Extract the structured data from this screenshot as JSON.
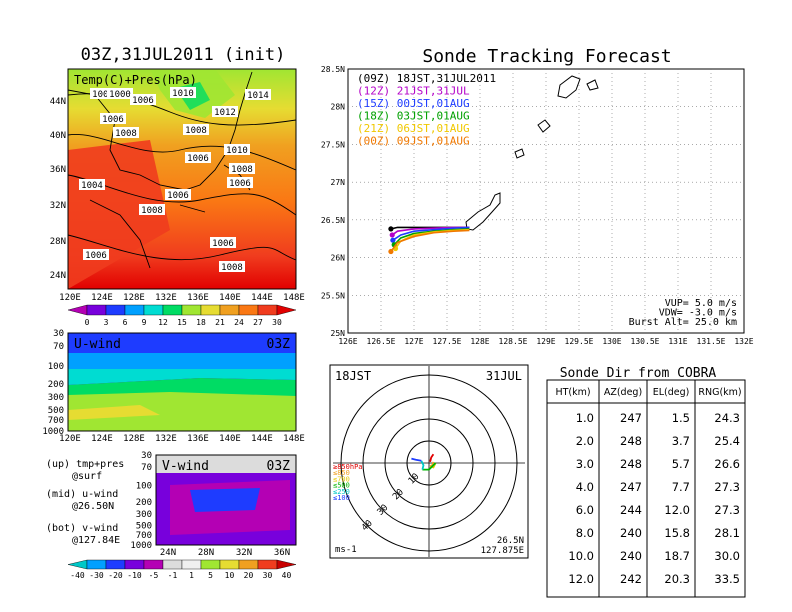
{
  "left_panel": {
    "title": "03Z,31JUL2011 (init)",
    "map_label": "Temp(C)+Pres(hPa)",
    "lat_ticks": [
      "44N",
      "40N",
      "36N",
      "32N",
      "28N",
      "24N"
    ],
    "lon_ticks": [
      "120E",
      "124E",
      "128E",
      "132E",
      "136E",
      "140E",
      "144E",
      "148E"
    ],
    "pressure_labels": [
      "1002",
      "1000",
      "1006",
      "1010",
      "1014",
      "1006",
      "1012",
      "1008",
      "1010",
      "1006",
      "1008",
      "1004",
      "1006",
      "1006",
      "1008",
      "1006",
      "1006",
      "1008",
      "1008"
    ],
    "temp_colorbar": [
      "0",
      "3",
      "6",
      "9",
      "12",
      "15",
      "18",
      "21",
      "24",
      "27",
      "30"
    ],
    "temp_colors": [
      "#b400b4",
      "#7800dc",
      "#1e3cff",
      "#00a0ff",
      "#00dcd2",
      "#00dc64",
      "#a0e632",
      "#e6dc32",
      "#f0a020",
      "#fa7814",
      "#f03c1e",
      "#e10000"
    ],
    "u_wind": {
      "label": "U-wind",
      "time": "03Z",
      "p_ticks": [
        "30",
        "70",
        "100",
        "200",
        "300",
        "500",
        "700",
        "1000"
      ],
      "lon_ticks": [
        "120E",
        "124E",
        "128E",
        "132E",
        "136E",
        "140E",
        "144E",
        "148E"
      ]
    },
    "v_wind": {
      "label": "V-wind",
      "time": "03Z",
      "p_ticks": [
        "30",
        "70",
        "100",
        "200",
        "300",
        "500",
        "700",
        "1000"
      ],
      "lat_ticks": [
        "24N",
        "28N",
        "32N",
        "36N"
      ]
    },
    "notes": [
      "(up) tmp+pres",
      "@surf",
      "(mid) u-wind",
      "@26.50N",
      "(bot) v-wind",
      "@127.84E"
    ],
    "wind_colorbar": [
      "-40",
      "-30",
      "-20",
      "-10",
      "-5",
      "-1",
      "1",
      "5",
      "10",
      "20",
      "30",
      "40"
    ],
    "wind_colors": [
      "#00c8c8",
      "#00a0ff",
      "#1e3cff",
      "#7800dc",
      "#b400b4",
      "#dcdcdc",
      "#f0f0f0",
      "#a0e632",
      "#e6dc32",
      "#f0a020",
      "#f03c1e",
      "#c80000"
    ]
  },
  "forecast": {
    "title": "Sonde Tracking Forecast",
    "lat_ticks": [
      "28.5N",
      "28N",
      "27.5N",
      "27N",
      "26.5N",
      "26N",
      "25.5N",
      "25N"
    ],
    "lon_ticks": [
      "126E",
      "126.5E",
      "127E",
      "127.5E",
      "128E",
      "128.5E",
      "129E",
      "129.5E",
      "130E",
      "130.5E",
      "131E",
      "131.5E",
      "132E"
    ],
    "legend": [
      {
        "text": "(09Z)  18JST,31JUL2011",
        "color": "#000000"
      },
      {
        "text": "(12Z)  21JST,31JUL",
        "color": "#b400c8"
      },
      {
        "text": "(15Z)  00JST,01AUG",
        "color": "#1e3cff"
      },
      {
        "text": "(18Z)  03JST,01AUG",
        "color": "#00a000"
      },
      {
        "text": "(21Z)  06JST,01AUG",
        "color": "#f0c800"
      },
      {
        "text": "(00Z)  09JST,01AUG",
        "color": "#f07800"
      }
    ],
    "params": [
      "VUP= 5.0 m/s",
      "VDW= -3.0 m/s",
      "Burst Alt= 25.0 km"
    ]
  },
  "hodograph": {
    "time": "18JST",
    "date": "31JUL",
    "ring_labels": [
      "10",
      "20",
      "30",
      "40"
    ],
    "levels": [
      {
        "text": "≥850hPa",
        "color": "#e10000"
      },
      {
        "text": "≤850",
        "color": "#f0a020"
      },
      {
        "text": "≤700",
        "color": "#e6c800"
      },
      {
        "text": "≤500",
        "color": "#00b400"
      },
      {
        "text": "≤250",
        "color": "#00c8c8"
      },
      {
        "text": "≤100",
        "color": "#1e3cff"
      }
    ],
    "unit": "ms-1",
    "loc_lat": "26.5N",
    "loc_lon": "127.875E"
  },
  "sonde_dir": {
    "title": "Sonde Dir from COBRA",
    "headers": [
      "HT(km)",
      "AZ(deg)",
      "EL(deg)",
      "RNG(km)"
    ],
    "rows": [
      [
        "1.0",
        "247",
        "1.5",
        "24.3"
      ],
      [
        "2.0",
        "248",
        "3.7",
        "25.4"
      ],
      [
        "3.0",
        "248",
        "5.7",
        "26.6"
      ],
      [
        "4.0",
        "247",
        "7.7",
        "27.3"
      ],
      [
        "6.0",
        "244",
        "12.0",
        "27.3"
      ],
      [
        "8.0",
        "240",
        "15.8",
        "28.1"
      ],
      [
        "10.0",
        "240",
        "18.7",
        "30.0"
      ],
      [
        "12.0",
        "242",
        "20.3",
        "33.5"
      ]
    ]
  },
  "chart_data": [
    {
      "type": "heatmap",
      "title": "03Z,31JUL2011 (init)",
      "subtitle": "Temp(C)+Pres(hPa)",
      "xlim": [
        "120E",
        "148E"
      ],
      "ylim": [
        "24N",
        "44N"
      ],
      "colorbar": [
        0,
        3,
        6,
        9,
        12,
        15,
        18,
        21,
        24,
        27,
        30
      ]
    },
    {
      "type": "heatmap",
      "title": "U-wind",
      "xlim": [
        "120E",
        "148E"
      ],
      "ylim": [
        1000,
        30
      ]
    },
    {
      "type": "heatmap",
      "title": "V-wind",
      "xlim": [
        "24N",
        "36N"
      ],
      "ylim": [
        1000,
        30
      ],
      "colorbar": [
        -40,
        -30,
        -20,
        -10,
        -5,
        -1,
        1,
        5,
        10,
        20,
        30,
        40
      ]
    },
    {
      "type": "line",
      "title": "Sonde Tracking Forecast",
      "xlim": [
        126,
        132
      ],
      "ylim": [
        25,
        28.5
      ],
      "series": [
        {
          "name": "(09Z)  18JST,31JUL2011",
          "x": [
            126.65,
            126.75,
            127.0,
            127.3,
            127.6,
            127.84
          ],
          "y": [
            26.38,
            26.4,
            26.4,
            26.4,
            26.4,
            26.4
          ]
        },
        {
          "name": "(12Z)  21JST,31JUL",
          "x": [
            126.67,
            126.75,
            127.0,
            127.3,
            127.6,
            127.84
          ],
          "y": [
            26.3,
            26.35,
            26.38,
            26.39,
            26.4,
            26.4
          ]
        },
        {
          "name": "(15Z)  00JST,01AUG",
          "x": [
            126.68,
            126.8,
            127.0,
            127.3,
            127.6,
            127.84
          ],
          "y": [
            26.23,
            26.3,
            26.35,
            26.37,
            26.39,
            26.4
          ]
        },
        {
          "name": "(18Z)  03JST,01AUG",
          "x": [
            126.7,
            126.8,
            127.0,
            127.3,
            127.6,
            127.84
          ],
          "y": [
            26.17,
            26.26,
            26.32,
            26.35,
            26.37,
            26.38
          ]
        },
        {
          "name": "(21Z)  06JST,01AUG",
          "x": [
            126.72,
            126.8,
            127.0,
            127.3,
            127.6,
            127.84
          ],
          "y": [
            26.12,
            26.22,
            26.3,
            26.34,
            26.36,
            26.37
          ]
        },
        {
          "name": "(00Z)  09JST,01AUG",
          "x": [
            126.65,
            126.75,
            127.0,
            127.3,
            127.6,
            127.84
          ],
          "y": [
            26.08,
            26.2,
            26.28,
            26.33,
            26.35,
            26.36
          ]
        }
      ]
    },
    {
      "type": "line",
      "title": "18JST 31JUL",
      "xlabel": "ms-1",
      "series": [
        {
          "name": "≥850hPa",
          "x": [
            0.5,
            1.0,
            2.0
          ],
          "y": [
            0.5,
            2.5,
            4.0
          ]
        },
        {
          "name": "≤850",
          "x": [
            2.0,
            1.5,
            0.5
          ],
          "y": [
            0.5,
            -1.0,
            -1.5
          ]
        },
        {
          "name": "≤700",
          "x": [
            0.5,
            2.0,
            3.0
          ],
          "y": [
            -1.5,
            -2.0,
            0.0
          ]
        },
        {
          "name": "≤500",
          "x": [
            3.0,
            0.0,
            -3.0
          ],
          "y": [
            0.0,
            -3.0,
            -3.0
          ]
        },
        {
          "name": "≤250",
          "x": [
            -3.0,
            -2.5,
            -3.5
          ],
          "y": [
            -3.0,
            -1.0,
            1.0
          ]
        },
        {
          "name": "≤100",
          "x": [
            -3.5,
            -6.0,
            -8.0
          ],
          "y": [
            1.0,
            1.5,
            2.0
          ]
        }
      ]
    },
    {
      "type": "table",
      "title": "Sonde Dir from COBRA",
      "columns": [
        "HT(km)",
        "AZ(deg)",
        "EL(deg)",
        "RNG(km)"
      ],
      "rows": [
        [
          1.0,
          247,
          1.5,
          24.3
        ],
        [
          2.0,
          248,
          3.7,
          25.4
        ],
        [
          3.0,
          248,
          5.7,
          26.6
        ],
        [
          4.0,
          247,
          7.7,
          27.3
        ],
        [
          6.0,
          244,
          12.0,
          27.3
        ],
        [
          8.0,
          240,
          15.8,
          28.1
        ],
        [
          10.0,
          240,
          18.7,
          30.0
        ],
        [
          12.0,
          242,
          20.3,
          33.5
        ]
      ]
    }
  ]
}
